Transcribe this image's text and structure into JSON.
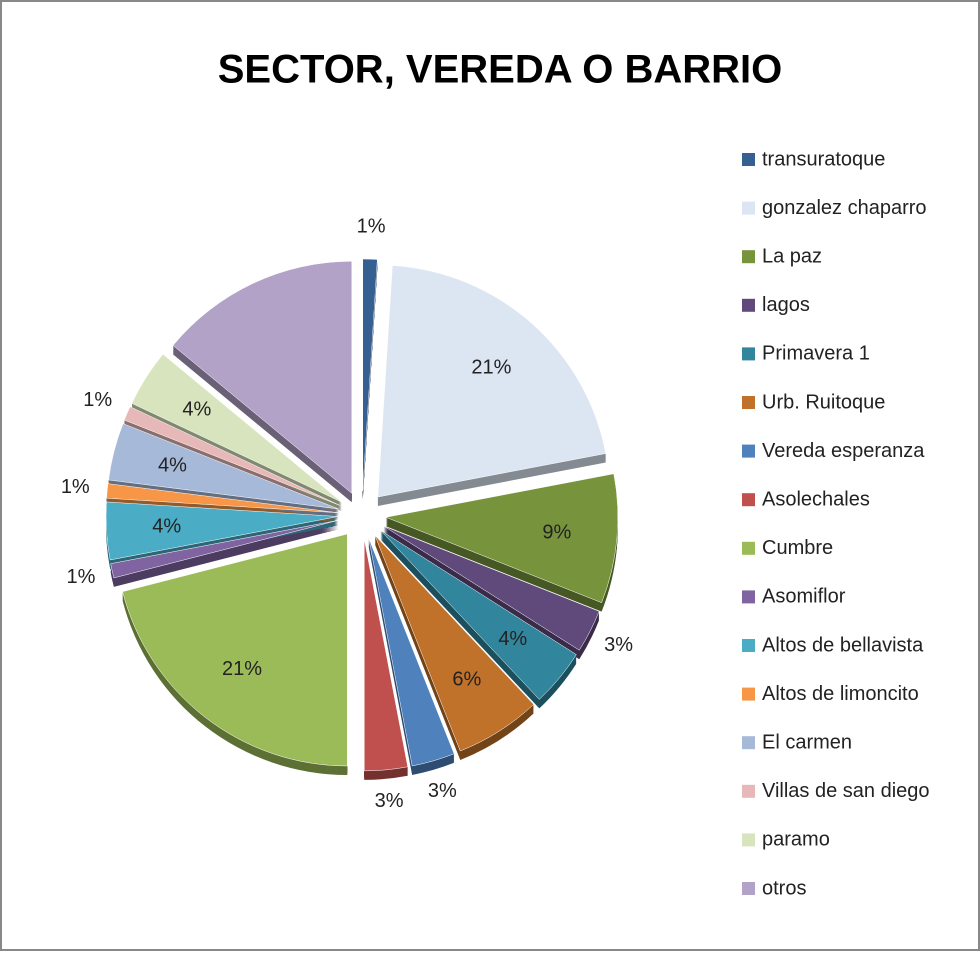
{
  "chart_data": {
    "type": "pie",
    "title": "SECTOR, VEREDA O BARRIO",
    "categories": [
      "transuratoque",
      "gonzalez chaparro",
      "La paz",
      "lagos",
      "Primavera 1",
      "Urb. Ruitoque",
      "Vereda esperanza",
      "Asolechales",
      "Cumbre",
      "Asomiflor",
      "Altos de bellavista",
      "Altos de limoncito",
      "El carmen",
      "Villas de san diego",
      "paramo",
      "otros"
    ],
    "values": [
      1,
      21,
      9,
      3,
      4,
      6,
      3,
      3,
      21,
      1,
      4,
      1,
      4,
      1,
      4,
      14
    ],
    "value_labels": [
      "1%",
      "21%",
      "9%",
      "3%",
      "4%",
      "6%",
      "3%",
      "3%",
      "21%",
      "1%",
      "4%",
      "1%",
      "4%",
      "1%",
      "4%",
      null
    ],
    "colors": [
      "#376092",
      "#dce6f2",
      "#77933c",
      "#604a7b",
      "#31859c",
      "#c0712a",
      "#4f81bd",
      "#c0504d",
      "#9bbb59",
      "#8064a2",
      "#4bacc6",
      "#f79646",
      "#a7b9d9",
      "#e6b9b8",
      "#d7e4bd",
      "#b3a2c7"
    ],
    "legend": "right"
  }
}
